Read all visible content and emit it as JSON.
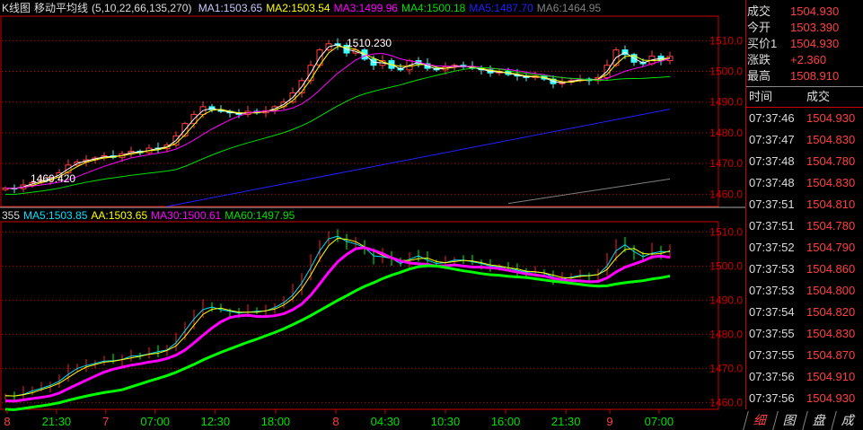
{
  "top_legend": {
    "title": "K线图",
    "indicator": "移动平均线",
    "params": "(5,10,22,66,135,270)",
    "ma": [
      {
        "label": "MA1:1503.65",
        "color": "#c8c8ff"
      },
      {
        "label": "MA2:1503.54",
        "color": "#ffff00"
      },
      {
        "label": "MA3:1499.96",
        "color": "#ff00ff"
      },
      {
        "label": "MA4:1500.18",
        "color": "#00e000"
      },
      {
        "label": "MA5:1487.70",
        "color": "#2020ff"
      },
      {
        "label": "MA6:1464.95",
        "color": "#808080"
      }
    ]
  },
  "bottom_legend": {
    "title": "355",
    "ma": [
      {
        "label": "MA5:1503.85",
        "color": "#00e0ff"
      },
      {
        "label": "AA:1503.65",
        "color": "#ffff00"
      },
      {
        "label": "MA30:1500.61",
        "color": "#ff00ff"
      },
      {
        "label": "MA60:1497.95",
        "color": "#00e000"
      }
    ]
  },
  "annotations": {
    "high": "1510.230",
    "low": "1460.420"
  },
  "quote": [
    {
      "k": "成交",
      "v": "1504.930"
    },
    {
      "k": "今开",
      "v": "1503.390"
    },
    {
      "k": "买价1",
      "v": "1504.930"
    },
    {
      "k": "涨跌",
      "v": "+2.360"
    },
    {
      "k": "最高",
      "v": "1508.910"
    }
  ],
  "ticks_header": {
    "time": "时间",
    "price": "成交"
  },
  "ticks": [
    [
      "07:37:46",
      "1504.930"
    ],
    [
      "07:37:47",
      "1504.830"
    ],
    [
      "07:37:48",
      "1504.780"
    ],
    [
      "07:37:48",
      "1504.830"
    ],
    [
      "07:37:51",
      "1504.810"
    ],
    [
      "07:37:51",
      "1504.780"
    ],
    [
      "07:37:52",
      "1504.790"
    ],
    [
      "07:37:53",
      "1504.860"
    ],
    [
      "07:37:53",
      "1504.800"
    ],
    [
      "07:37:54",
      "1504.820"
    ],
    [
      "07:37:55",
      "1504.830"
    ],
    [
      "07:37:55",
      "1504.870"
    ],
    [
      "07:37:56",
      "1504.910"
    ],
    [
      "07:37:56",
      "1504.930"
    ]
  ],
  "tabs": [
    "细",
    "图",
    "盘",
    "成"
  ],
  "chart_data": {
    "type": "candlestick",
    "top_yticks": [
      1510,
      1500,
      1490,
      1480,
      1470,
      1460
    ],
    "top_ylim": [
      1456,
      1518
    ],
    "bottom_yticks": [
      1510,
      1500,
      1490,
      1480,
      1470,
      1460
    ],
    "bottom_ylim": [
      1458,
      1513
    ],
    "xticks": [
      {
        "label": "8",
        "idx": 0,
        "day": true
      },
      {
        "label": "21:30",
        "idx": 9
      },
      {
        "label": "7",
        "idx": 18,
        "day": true
      },
      {
        "label": "07:00",
        "idx": 27
      },
      {
        "label": "12:30",
        "idx": 38
      },
      {
        "label": "18:00",
        "idx": 49
      },
      {
        "label": "8",
        "idx": 60,
        "day": true
      },
      {
        "label": "04:30",
        "idx": 69
      },
      {
        "label": "10:30",
        "idx": 80
      },
      {
        "label": "16:00",
        "idx": 91
      },
      {
        "label": "21:30",
        "idx": 102
      },
      {
        "label": "9",
        "idx": 110,
        "day": true
      },
      {
        "label": "07:00",
        "idx": 119
      }
    ],
    "closes": [
      1462.0,
      1461.8,
      1463.0,
      1463.8,
      1464.5,
      1465.5,
      1467.0,
      1469.5,
      1470.5,
      1471.2,
      1471.8,
      1472.5,
      1472.0,
      1473.2,
      1474.0,
      1473.5,
      1475.0,
      1474.8,
      1476.0,
      1479.0,
      1483.0,
      1486.0,
      1488.5,
      1487.5,
      1487.0,
      1486.5,
      1486.0,
      1487.0,
      1486.5,
      1487.2,
      1488.5,
      1490.0,
      1493.0,
      1497.0,
      1502.0,
      1507.0,
      1509.0,
      1508.5,
      1506.0,
      1507.0,
      1504.0,
      1502.0,
      1503.5,
      1501.0,
      1500.5,
      1503.5,
      1502.5,
      1501.0,
      1500.5,
      1501.5,
      1502.0,
      1501.5,
      1501.0,
      1500.5,
      1499.5,
      1500.0,
      1499.0,
      1498.5,
      1498.0,
      1498.5,
      1497.5,
      1496.0,
      1496.5,
      1497.0,
      1497.5,
      1497.0,
      1498.0,
      1502.0,
      1507.0,
      1505.5,
      1503.0,
      1502.5,
      1505.0,
      1503.5,
      1504.9
    ],
    "ma5_long": [
      [
        18,
        1456
      ],
      [
        74,
        1487.7
      ]
    ],
    "ma6_long": [
      [
        56,
        1457
      ],
      [
        74,
        1464.95
      ]
    ]
  }
}
